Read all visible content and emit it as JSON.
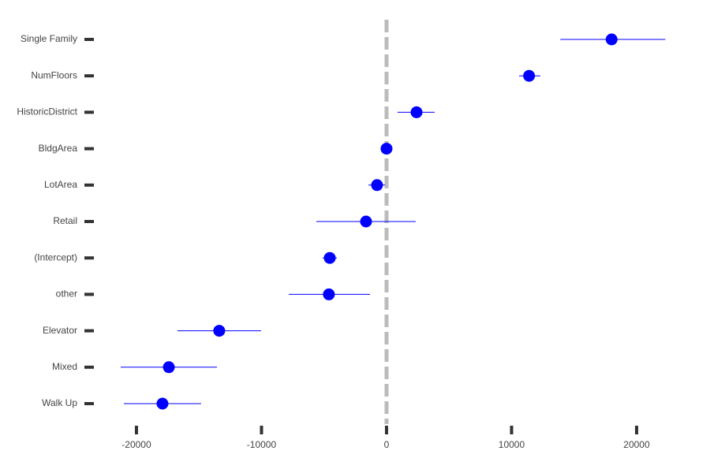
{
  "chart_data": {
    "type": "coefplot",
    "categories": [
      "Single Family",
      "NumFloors",
      "HistoricDistrict",
      "BldgArea",
      "LotArea",
      "Retail",
      "(Intercept)",
      "other",
      "Elevator",
      "Mixed",
      "Walk Up"
    ],
    "values": [
      18000,
      11400,
      2400,
      0,
      -760,
      -1640,
      -4540,
      -4610,
      -13380,
      -17410,
      -17920
    ],
    "ci_low": [
      13900,
      10600,
      880,
      -100,
      -1450,
      -5620,
      -5110,
      -7820,
      -16720,
      -21260,
      -21010
    ],
    "ci_high": [
      22300,
      12300,
      3850,
      100,
      -130,
      2330,
      -3970,
      -1320,
      -10030,
      -13560,
      -14830
    ],
    "color": "#0000ff",
    "reference_line": 0,
    "xlim": [
      -23500,
      24500
    ],
    "xticks": [
      -20000,
      -10000,
      0,
      10000,
      20000
    ]
  }
}
